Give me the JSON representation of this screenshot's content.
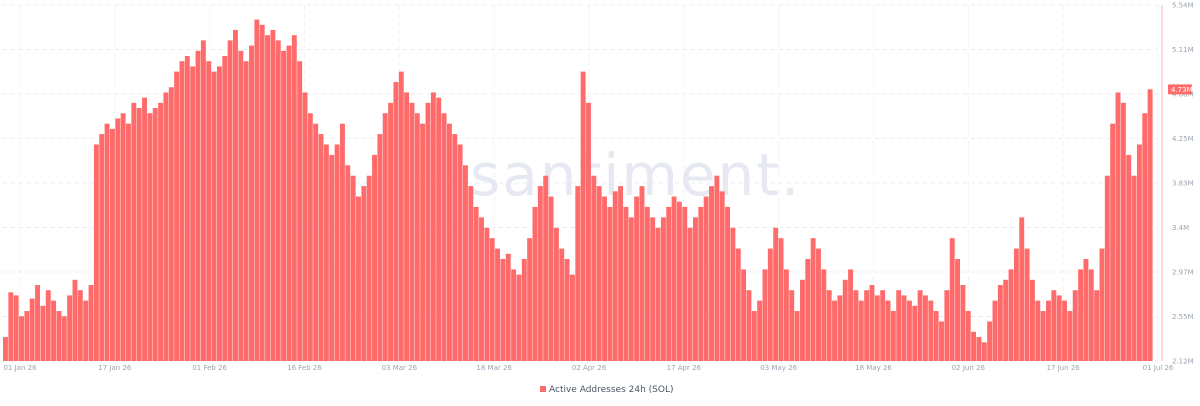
{
  "watermark": "santiment.",
  "legend": {
    "label": "Active Addresses 24h (SOL)",
    "color": "#ff6b6b"
  },
  "current_value_label": "4.73M",
  "chart_data": {
    "type": "bar",
    "ylim": [
      2.12,
      5.54
    ],
    "y_ticks": [
      "5.54M",
      "5.11M",
      "4.68M",
      "4.25M",
      "3.83M",
      "3.4M",
      "2.97M",
      "2.55M",
      "2.12M"
    ],
    "x_ticks": [
      "01 Jan 26",
      "17 Jan 26",
      "01 Feb 26",
      "16 Feb 26",
      "03 Mar 26",
      "18 Mar 26",
      "02 Apr 26",
      "17 Apr 26",
      "03 May 26",
      "18 May 26",
      "02 Jun 26",
      "17 Jun 26",
      "01 Jul 26"
    ],
    "current_value": 4.73,
    "bar_color": "#ff6b6b",
    "series": [
      {
        "name": "Active Addresses 24h (SOL)",
        "values": [
          2.35,
          2.78,
          2.75,
          2.55,
          2.6,
          2.72,
          2.85,
          2.65,
          2.8,
          2.7,
          2.6,
          2.55,
          2.75,
          2.9,
          2.8,
          2.7,
          2.85,
          4.2,
          4.3,
          4.4,
          4.35,
          4.45,
          4.5,
          4.4,
          4.6,
          4.55,
          4.65,
          4.5,
          4.55,
          4.6,
          4.7,
          4.75,
          4.9,
          5.0,
          5.05,
          4.95,
          5.1,
          5.2,
          5.0,
          4.9,
          4.95,
          5.05,
          5.2,
          5.3,
          5.1,
          5.0,
          5.15,
          5.4,
          5.35,
          5.25,
          5.3,
          5.2,
          5.1,
          5.15,
          5.25,
          5.0,
          4.7,
          4.5,
          4.4,
          4.3,
          4.2,
          4.1,
          4.2,
          4.4,
          4.0,
          3.9,
          3.7,
          3.8,
          3.9,
          4.1,
          4.3,
          4.5,
          4.6,
          4.8,
          4.9,
          4.7,
          4.6,
          4.5,
          4.4,
          4.6,
          4.7,
          4.65,
          4.5,
          4.4,
          4.3,
          4.2,
          4.0,
          3.8,
          3.6,
          3.5,
          3.4,
          3.3,
          3.2,
          3.1,
          3.15,
          3.0,
          2.95,
          3.1,
          3.3,
          3.6,
          3.8,
          3.9,
          3.7,
          3.4,
          3.2,
          3.1,
          2.95,
          3.8,
          4.9,
          4.6,
          3.9,
          3.8,
          3.7,
          3.6,
          3.75,
          3.8,
          3.6,
          3.5,
          3.7,
          3.8,
          3.6,
          3.5,
          3.4,
          3.5,
          3.6,
          3.7,
          3.65,
          3.6,
          3.4,
          3.5,
          3.6,
          3.7,
          3.8,
          3.9,
          3.75,
          3.6,
          3.4,
          3.2,
          3.0,
          2.8,
          2.6,
          2.7,
          3.0,
          3.2,
          3.4,
          3.3,
          3.0,
          2.8,
          2.6,
          2.9,
          3.1,
          3.3,
          3.2,
          3.0,
          2.8,
          2.7,
          2.75,
          2.9,
          3.0,
          2.8,
          2.7,
          2.8,
          2.85,
          2.75,
          2.8,
          2.7,
          2.6,
          2.8,
          2.75,
          2.7,
          2.65,
          2.8,
          2.75,
          2.7,
          2.6,
          2.5,
          2.8,
          3.3,
          3.1,
          2.85,
          2.6,
          2.4,
          2.35,
          2.3,
          2.5,
          2.7,
          2.85,
          2.9,
          3.0,
          3.2,
          3.5,
          3.2,
          2.9,
          2.7,
          2.6,
          2.7,
          2.8,
          2.75,
          2.7,
          2.6,
          2.8,
          3.0,
          3.1,
          3.0,
          2.8,
          3.2,
          3.9,
          4.4,
          4.7,
          4.6,
          4.1,
          3.9,
          4.2,
          4.5,
          4.73
        ]
      }
    ]
  }
}
